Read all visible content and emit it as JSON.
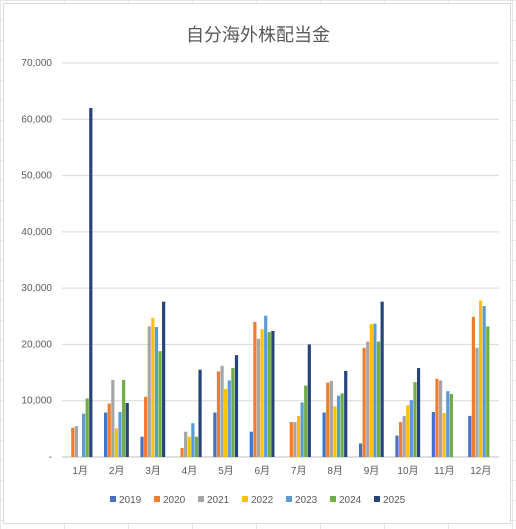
{
  "chart_data": {
    "type": "bar",
    "title": "自分海外株配当金",
    "xlabel": "",
    "ylabel": "",
    "categories": [
      "1月",
      "2月",
      "3月",
      "4月",
      "5月",
      "6月",
      "7月",
      "8月",
      "9月",
      "10月",
      "11月",
      "12月"
    ],
    "ylim": [
      0,
      70000
    ],
    "yticks": [
      {
        "value": 0,
        "label": "-"
      },
      {
        "value": 10000,
        "label": "10,000"
      },
      {
        "value": 20000,
        "label": "20,000"
      },
      {
        "value": 30000,
        "label": "30,000"
      },
      {
        "value": 40000,
        "label": "40,000"
      },
      {
        "value": 50000,
        "label": "50,000"
      },
      {
        "value": 60000,
        "label": "60,000"
      },
      {
        "value": 70000,
        "label": "70,000"
      }
    ],
    "grid": true,
    "legend_position": "bottom",
    "series": [
      {
        "name": "2019",
        "color": "#4472c4",
        "values": [
          0,
          7900,
          3600,
          0,
          7900,
          4500,
          0,
          7900,
          2400,
          3800,
          8000,
          7300
        ]
      },
      {
        "name": "2020",
        "color": "#ed7d31",
        "values": [
          5200,
          9500,
          10700,
          1600,
          15200,
          24000,
          6200,
          13200,
          19400,
          6200,
          13900,
          24900
        ]
      },
      {
        "name": "2021",
        "color": "#a5a5a5",
        "values": [
          5500,
          13700,
          23200,
          4500,
          16200,
          21000,
          6200,
          13500,
          20500,
          7300,
          13600,
          19400
        ]
      },
      {
        "name": "2022",
        "color": "#ffc000",
        "values": [
          0,
          5100,
          24700,
          3600,
          12100,
          22700,
          7300,
          9000,
          23600,
          9200,
          7800,
          27800
        ]
      },
      {
        "name": "2023",
        "color": "#5b9bd5",
        "values": [
          7700,
          8000,
          23100,
          6000,
          13600,
          25100,
          9700,
          10900,
          23700,
          10100,
          11700,
          26800
        ]
      },
      {
        "name": "2024",
        "color": "#70ad47",
        "values": [
          10400,
          13700,
          18800,
          3600,
          15800,
          22200,
          12700,
          11300,
          20500,
          13300,
          11200,
          23200
        ]
      },
      {
        "name": "2025",
        "color": "#264478",
        "values": [
          62000,
          9600,
          27600,
          15500,
          18100,
          22400,
          20000,
          15300,
          27600,
          15800,
          0,
          0
        ]
      }
    ]
  }
}
